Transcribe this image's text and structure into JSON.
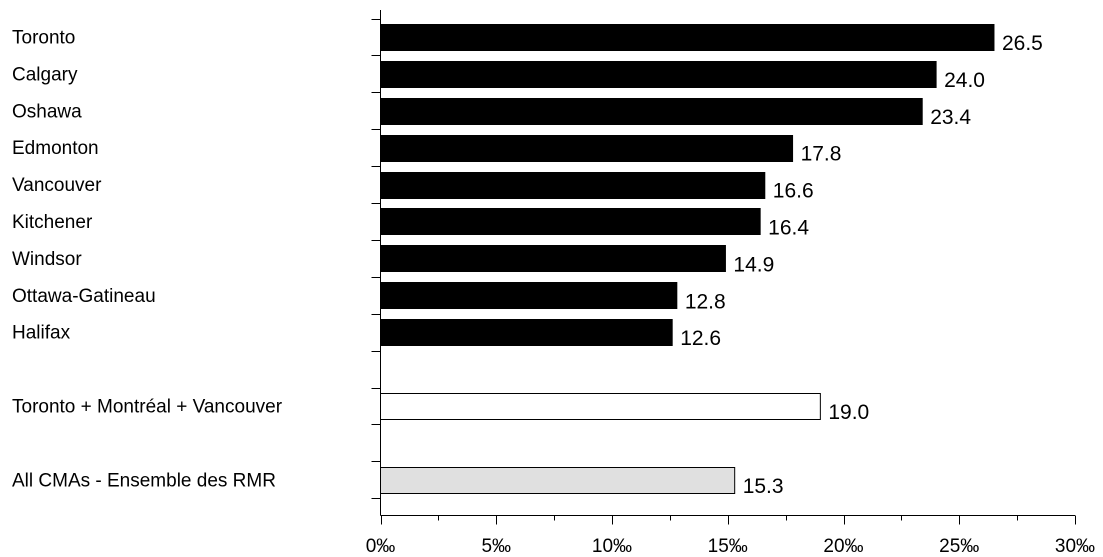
{
  "chart_data": {
    "type": "bar",
    "orientation": "horizontal",
    "categories": [
      "Toronto",
      "Calgary",
      "Oshawa",
      "Edmonton",
      "Vancouver",
      "Kitchener",
      "Windsor",
      "Ottawa-Gatineau",
      "Halifax",
      "",
      "Toronto + Montréal + Vancouver",
      "",
      "All CMAs - Ensemble des RMR"
    ],
    "values": [
      26.5,
      24.0,
      23.4,
      17.8,
      16.6,
      16.4,
      14.9,
      12.8,
      12.6,
      null,
      19.0,
      null,
      15.3
    ],
    "value_labels": [
      "26.5",
      "24.0",
      "23.4",
      "17.8",
      "16.6",
      "16.4",
      "14.9",
      "12.8",
      "12.6",
      "",
      "19.0",
      "",
      "15.3"
    ],
    "bar_colors": [
      "#000000",
      "#000000",
      "#000000",
      "#000000",
      "#000000",
      "#000000",
      "#000000",
      "#000000",
      "#000000",
      "",
      "#ffffff",
      "",
      "#e0e0e0"
    ],
    "xlim": [
      0,
      30
    ],
    "xticks": [
      0,
      5,
      10,
      15,
      20,
      25,
      30
    ],
    "xtick_labels": [
      "0‰",
      "5‰",
      "10‰",
      "15‰",
      "20‰",
      "25‰",
      "30‰"
    ],
    "title": "",
    "xlabel": "",
    "ylabel": "",
    "grid": false,
    "legend": "none"
  }
}
